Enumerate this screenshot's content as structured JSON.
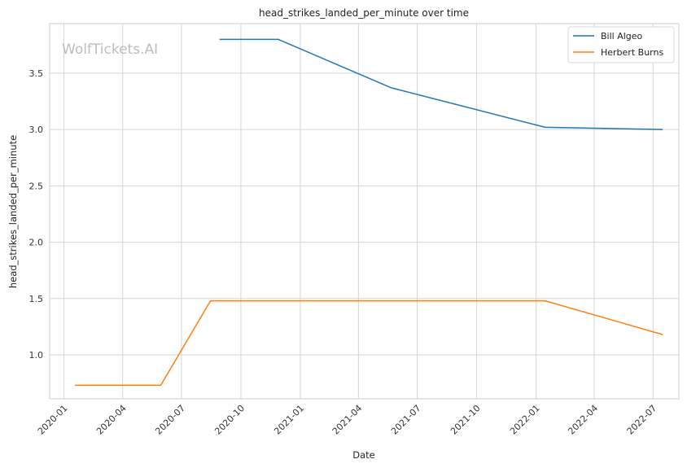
{
  "chart_data": {
    "type": "line",
    "title": "head_strikes_landed_per_minute over time",
    "xlabel": "Date",
    "ylabel": "head_strikes_landed_per_minute",
    "watermark": "WolfTickets.AI",
    "x_ticks": [
      "2020-01",
      "2020-04",
      "2020-07",
      "2020-10",
      "2021-01",
      "2021-04",
      "2021-07",
      "2021-10",
      "2022-01",
      "2022-04",
      "2022-07"
    ],
    "y_ticks": [
      "1.0",
      "1.5",
      "2.0",
      "2.5",
      "3.0",
      "3.5"
    ],
    "xlim": [
      "2019-12-10",
      "2022-08-10"
    ],
    "ylim": [
      0.61,
      3.94
    ],
    "grid": true,
    "legend_position": "top-right",
    "series": [
      {
        "name": "Bill Algeo",
        "color": "#1f77b4",
        "points": [
          {
            "x": "2020-08-29",
            "y": 3.8
          },
          {
            "x": "2020-11-28",
            "y": 3.8
          },
          {
            "x": "2021-05-22",
            "y": 3.37
          },
          {
            "x": "2022-01-15",
            "y": 3.02
          },
          {
            "x": "2022-07-16",
            "y": 3.0
          }
        ]
      },
      {
        "name": "Herbert Burns",
        "color": "#ff7f0e",
        "points": [
          {
            "x": "2020-01-18",
            "y": 0.73
          },
          {
            "x": "2020-05-30",
            "y": 0.73
          },
          {
            "x": "2020-08-15",
            "y": 1.48
          },
          {
            "x": "2022-01-15",
            "y": 1.48
          },
          {
            "x": "2022-07-16",
            "y": 1.18
          }
        ]
      }
    ]
  }
}
